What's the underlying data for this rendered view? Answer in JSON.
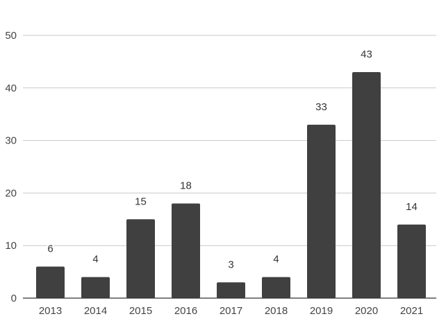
{
  "chart_data": {
    "type": "bar",
    "categories": [
      "2013",
      "2014",
      "2015",
      "2016",
      "2017",
      "2018",
      "2019",
      "2020",
      "2021"
    ],
    "values": [
      6,
      4,
      15,
      18,
      3,
      4,
      33,
      43,
      14
    ],
    "title": "",
    "xlabel": "",
    "ylabel": "",
    "ylim": [
      0,
      50
    ],
    "yticks": [
      0,
      10,
      20,
      30,
      40,
      50
    ],
    "grid": true,
    "legend": "none",
    "data_labels": true,
    "colors": {
      "bar": "#404040",
      "grid": "#c8c8c8",
      "axis": "#333333",
      "label_bg": "#ffffff"
    }
  }
}
